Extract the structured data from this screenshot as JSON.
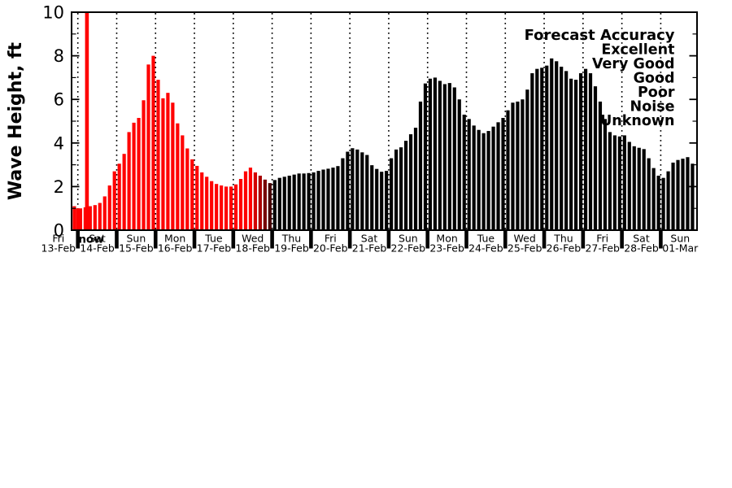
{
  "chart_data": {
    "type": "bar",
    "title": "",
    "ylabel": "Wave Height, ft",
    "xlabel": "",
    "ylim": [
      0,
      10
    ],
    "yticks": [
      0,
      2,
      4,
      6,
      8,
      10
    ],
    "yticks_minor": [
      1,
      3,
      5,
      7,
      9
    ],
    "grid": "vertical-dotted-per-day",
    "bar_interval_hours": 3,
    "now_marker": {
      "label": "now",
      "color": "#ff0000",
      "position_day": "14-Feb"
    },
    "legend": {
      "position": "upper-right-inside",
      "title": "Forecast Accuracy",
      "entries": [
        {
          "label": "Excellent",
          "color": "#00dd00"
        },
        {
          "label": "Very Good",
          "color": "#0000ee"
        },
        {
          "label": "Good",
          "color": "#9932cc"
        },
        {
          "label": "Poor",
          "color": "#ffc800"
        },
        {
          "label": "Noise",
          "color": "#ff0000"
        },
        {
          "label": "Unknown",
          "color": "#000000"
        }
      ]
    },
    "days": [
      {
        "day": "Fri",
        "date": "13-Feb",
        "color": "#ff0000",
        "values": [
          1.1,
          1.0
        ]
      },
      {
        "day": "Sat",
        "date": "14-Feb",
        "color": "#ff0000",
        "values": [
          1.0,
          1.05,
          1.1,
          1.15,
          1.25,
          1.55,
          2.05,
          2.7
        ]
      },
      {
        "day": "Sun",
        "date": "15-Feb",
        "color": "#ff0000",
        "values": [
          3.05,
          3.5,
          4.5,
          4.93,
          5.15,
          5.96,
          7.6,
          8.0
        ]
      },
      {
        "day": "Mon",
        "date": "16-Feb",
        "color": "#ff0000",
        "values": [
          6.9,
          6.05,
          6.3,
          5.85,
          4.9,
          4.35,
          3.75,
          3.25
        ]
      },
      {
        "day": "Tue",
        "date": "17-Feb",
        "color": "#ff0000",
        "values": [
          2.95,
          2.65,
          2.45,
          2.25,
          2.12,
          2.05,
          2.0,
          2.0
        ]
      },
      {
        "day": "Wed",
        "date": "18-Feb",
        "color": "#ff0000",
        "values": [
          2.1,
          2.35,
          2.7,
          2.87,
          2.65,
          2.5,
          2.32,
          2.16
        ],
        "colors": [
          "#ff0000",
          "#ff0000",
          "#ff0000",
          "#ff0000",
          "#d40000",
          "#a60000",
          "#760000",
          "#460000"
        ]
      },
      {
        "day": "Thu",
        "date": "19-Feb",
        "color": "#000000",
        "values": [
          2.3,
          2.4,
          2.45,
          2.5,
          2.55,
          2.6,
          2.6,
          2.62
        ]
      },
      {
        "day": "Fri",
        "date": "20-Feb",
        "color": "#000000",
        "values": [
          2.65,
          2.72,
          2.78,
          2.82,
          2.87,
          2.94,
          3.3,
          3.6
        ]
      },
      {
        "day": "Sat",
        "date": "21-Feb",
        "color": "#000000",
        "values": [
          3.76,
          3.7,
          3.57,
          3.45,
          2.98,
          2.81,
          2.68,
          2.72
        ]
      },
      {
        "day": "Sun",
        "date": "22-Feb",
        "color": "#000000",
        "values": [
          3.3,
          3.7,
          3.8,
          4.1,
          4.4,
          4.7,
          5.9,
          6.73
        ]
      },
      {
        "day": "Mon",
        "date": "23-Feb",
        "color": "#000000",
        "values": [
          6.95,
          7.0,
          6.85,
          6.7,
          6.75,
          6.55,
          6.0,
          5.3
        ]
      },
      {
        "day": "Tue",
        "date": "24-Feb",
        "color": "#000000",
        "values": [
          5.1,
          4.8,
          4.6,
          4.45,
          4.55,
          4.75,
          4.95,
          5.15
        ]
      },
      {
        "day": "Wed",
        "date": "25-Feb",
        "color": "#000000",
        "values": [
          5.5,
          5.85,
          5.9,
          6.0,
          6.45,
          7.2,
          7.4,
          7.45
        ]
      },
      {
        "day": "Thu",
        "date": "26-Feb",
        "color": "#000000",
        "values": [
          7.55,
          7.88,
          7.75,
          7.5,
          7.3,
          6.95,
          6.9,
          7.2
        ]
      },
      {
        "day": "Fri",
        "date": "27-Feb",
        "color": "#000000",
        "values": [
          7.4,
          7.2,
          6.6,
          5.9,
          5.1,
          4.5,
          4.35,
          4.3
        ]
      },
      {
        "day": "Sat",
        "date": "28-Feb",
        "color": "#000000",
        "values": [
          4.35,
          4.05,
          3.85,
          3.78,
          3.72,
          3.3,
          2.85,
          2.5
        ]
      },
      {
        "day": "Sun",
        "date": "01-Mar",
        "color": "#000000",
        "values": [
          2.4,
          2.7,
          3.1,
          3.22,
          3.28,
          3.35,
          3.05
        ]
      }
    ]
  }
}
